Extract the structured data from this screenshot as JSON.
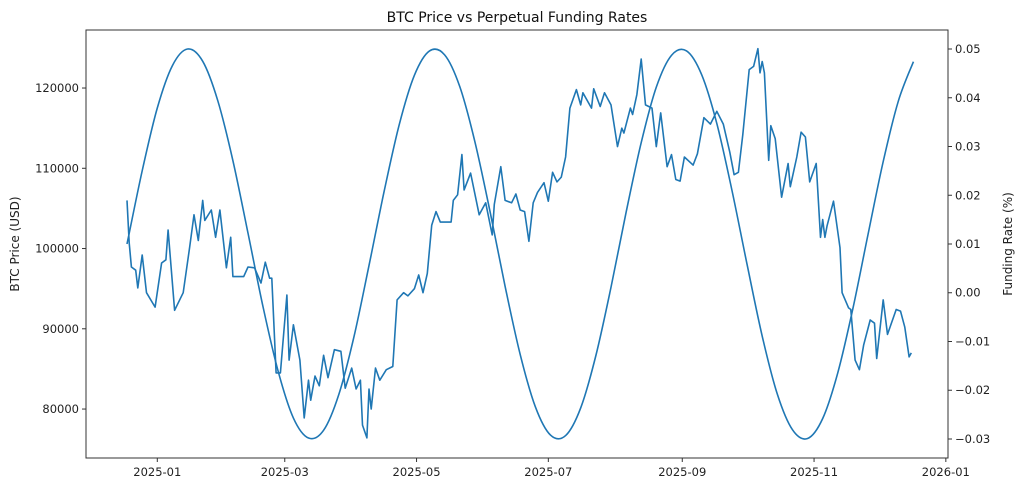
{
  "chart_data": {
    "type": "line",
    "title": "BTC Price vs Perpetual Funding Rates",
    "ylabel": "BTC Price (USD)",
    "y2label": "Funding Rate (%)",
    "xlim": [
      "2024-11-29",
      "2026-01-02"
    ],
    "ylim": [
      73900,
      127230
    ],
    "y2lim": [
      -0.0339,
      0.0539
    ],
    "grid": false,
    "color": "#1f77b4",
    "x_ticks": [
      "2025-01",
      "2025-03",
      "2025-05",
      "2025-07",
      "2025-09",
      "2025-11",
      "2026-01"
    ],
    "y_ticks": [
      "80000",
      "90000",
      "100000",
      "110000",
      "120000"
    ],
    "y2_ticks": [
      "-0.03",
      "-0.02",
      "-0.01",
      "0.00",
      "0.01",
      "0.02",
      "0.03",
      "0.04",
      "0.05"
    ],
    "series": [
      {
        "axis": "left",
        "points": [
          [
            "2024-12-18",
            106000
          ],
          [
            "2024-12-19",
            100700
          ],
          [
            "2024-12-20",
            97700
          ],
          [
            "2024-12-22",
            97300
          ],
          [
            "2024-12-23",
            95100
          ],
          [
            "2024-12-25",
            99200
          ],
          [
            "2024-12-27",
            94500
          ],
          [
            "2024-12-31",
            92700
          ],
          [
            "2025-01-03",
            98200
          ],
          [
            "2025-01-05",
            98600
          ],
          [
            "2025-01-06",
            102300
          ],
          [
            "2025-01-09",
            92300
          ],
          [
            "2025-01-13",
            94500
          ],
          [
            "2025-01-16",
            100200
          ],
          [
            "2025-01-18",
            104200
          ],
          [
            "2025-01-20",
            101000
          ],
          [
            "2025-01-22",
            106000
          ],
          [
            "2025-01-23",
            103500
          ],
          [
            "2025-01-26",
            104800
          ],
          [
            "2025-01-28",
            101400
          ],
          [
            "2025-01-30",
            104800
          ],
          [
            "2025-02-02",
            97600
          ],
          [
            "2025-02-04",
            101400
          ],
          [
            "2025-02-05",
            96500
          ],
          [
            "2025-02-10",
            96500
          ],
          [
            "2025-02-12",
            97700
          ],
          [
            "2025-02-15",
            97600
          ],
          [
            "2025-02-18",
            95700
          ],
          [
            "2025-02-20",
            98300
          ],
          [
            "2025-02-22",
            96300
          ],
          [
            "2025-02-23",
            96300
          ],
          [
            "2025-02-25",
            84500
          ],
          [
            "2025-02-27",
            84500
          ],
          [
            "2025-03-02",
            94200
          ],
          [
            "2025-03-03",
            86100
          ],
          [
            "2025-03-05",
            90500
          ],
          [
            "2025-03-08",
            86100
          ],
          [
            "2025-03-10",
            78900
          ],
          [
            "2025-03-12",
            83600
          ],
          [
            "2025-03-13",
            81100
          ],
          [
            "2025-03-15",
            84100
          ],
          [
            "2025-03-17",
            82900
          ],
          [
            "2025-03-19",
            86700
          ],
          [
            "2025-03-21",
            83900
          ],
          [
            "2025-03-24",
            87400
          ],
          [
            "2025-03-27",
            87200
          ],
          [
            "2025-03-29",
            82600
          ],
          [
            "2025-04-01",
            85100
          ],
          [
            "2025-04-03",
            82500
          ],
          [
            "2025-04-05",
            83600
          ],
          [
            "2025-04-06",
            78000
          ],
          [
            "2025-04-08",
            76400
          ],
          [
            "2025-04-09",
            82500
          ],
          [
            "2025-04-10",
            80000
          ],
          [
            "2025-04-12",
            85100
          ],
          [
            "2025-04-14",
            83600
          ],
          [
            "2025-04-17",
            84900
          ],
          [
            "2025-04-20",
            85300
          ],
          [
            "2025-04-22",
            93600
          ],
          [
            "2025-04-25",
            94500
          ],
          [
            "2025-04-27",
            94100
          ],
          [
            "2025-04-30",
            95000
          ],
          [
            "2025-05-02",
            96700
          ],
          [
            "2025-05-04",
            94500
          ],
          [
            "2025-05-06",
            96900
          ],
          [
            "2025-05-08",
            102900
          ],
          [
            "2025-05-10",
            104600
          ],
          [
            "2025-05-12",
            103300
          ],
          [
            "2025-05-17",
            103300
          ],
          [
            "2025-05-18",
            106000
          ],
          [
            "2025-05-20",
            106700
          ],
          [
            "2025-05-22",
            111700
          ],
          [
            "2025-05-23",
            107300
          ],
          [
            "2025-05-26",
            109400
          ],
          [
            "2025-05-30",
            104200
          ],
          [
            "2025-06-02",
            105700
          ],
          [
            "2025-06-05",
            101700
          ],
          [
            "2025-06-06",
            105500
          ],
          [
            "2025-06-09",
            110200
          ],
          [
            "2025-06-11",
            106000
          ],
          [
            "2025-06-14",
            105700
          ],
          [
            "2025-06-16",
            106800
          ],
          [
            "2025-06-18",
            104800
          ],
          [
            "2025-06-20",
            104600
          ],
          [
            "2025-06-22",
            100900
          ],
          [
            "2025-06-24",
            105700
          ],
          [
            "2025-06-26",
            107000
          ],
          [
            "2025-06-29",
            108200
          ],
          [
            "2025-07-01",
            105900
          ],
          [
            "2025-07-03",
            109500
          ],
          [
            "2025-07-05",
            108300
          ],
          [
            "2025-07-07",
            108900
          ],
          [
            "2025-07-09",
            111400
          ],
          [
            "2025-07-11",
            117500
          ],
          [
            "2025-07-14",
            119800
          ],
          [
            "2025-07-16",
            117900
          ],
          [
            "2025-07-17",
            119400
          ],
          [
            "2025-07-21",
            117500
          ],
          [
            "2025-07-22",
            119900
          ],
          [
            "2025-07-25",
            117700
          ],
          [
            "2025-07-27",
            119400
          ],
          [
            "2025-07-30",
            117900
          ],
          [
            "2025-08-02",
            112700
          ],
          [
            "2025-08-04",
            115000
          ],
          [
            "2025-08-05",
            114400
          ],
          [
            "2025-08-08",
            117500
          ],
          [
            "2025-08-09",
            116700
          ],
          [
            "2025-08-11",
            119200
          ],
          [
            "2025-08-13",
            123600
          ],
          [
            "2025-08-15",
            117900
          ],
          [
            "2025-08-18",
            117500
          ],
          [
            "2025-08-20",
            112700
          ],
          [
            "2025-08-22",
            116900
          ],
          [
            "2025-08-25",
            110200
          ],
          [
            "2025-08-27",
            111700
          ],
          [
            "2025-08-29",
            108600
          ],
          [
            "2025-08-31",
            108400
          ],
          [
            "2025-09-02",
            111400
          ],
          [
            "2025-09-06",
            110400
          ],
          [
            "2025-09-08",
            111800
          ],
          [
            "2025-09-11",
            116300
          ],
          [
            "2025-09-14",
            115500
          ],
          [
            "2025-09-17",
            117100
          ],
          [
            "2025-09-20",
            115500
          ],
          [
            "2025-09-23",
            112000
          ],
          [
            "2025-09-25",
            109200
          ],
          [
            "2025-09-27",
            109500
          ],
          [
            "2025-09-29",
            114200
          ],
          [
            "2025-10-02",
            122300
          ],
          [
            "2025-10-04",
            122700
          ],
          [
            "2025-10-06",
            124900
          ],
          [
            "2025-10-07",
            121900
          ],
          [
            "2025-10-08",
            123300
          ],
          [
            "2025-10-09",
            121900
          ],
          [
            "2025-10-11",
            111000
          ],
          [
            "2025-10-12",
            115300
          ],
          [
            "2025-10-14",
            113700
          ],
          [
            "2025-10-17",
            106400
          ],
          [
            "2025-10-20",
            110600
          ],
          [
            "2025-10-21",
            107700
          ],
          [
            "2025-10-24",
            111400
          ],
          [
            "2025-10-26",
            114500
          ],
          [
            "2025-10-28",
            113900
          ],
          [
            "2025-10-30",
            108300
          ],
          [
            "2025-11-02",
            110600
          ],
          [
            "2025-11-04",
            101400
          ],
          [
            "2025-11-05",
            103600
          ],
          [
            "2025-11-06",
            101400
          ],
          [
            "2025-11-07",
            102800
          ],
          [
            "2025-11-10",
            105900
          ],
          [
            "2025-11-13",
            100100
          ],
          [
            "2025-11-14",
            94500
          ],
          [
            "2025-11-17",
            92600
          ],
          [
            "2025-11-18",
            92400
          ],
          [
            "2025-11-20",
            86100
          ],
          [
            "2025-11-22",
            84900
          ],
          [
            "2025-11-24",
            88000
          ],
          [
            "2025-11-27",
            91100
          ],
          [
            "2025-11-29",
            90700
          ],
          [
            "2025-11-30",
            86300
          ],
          [
            "2025-12-03",
            93600
          ],
          [
            "2025-12-05",
            89300
          ],
          [
            "2025-12-09",
            92400
          ],
          [
            "2025-12-11",
            92200
          ],
          [
            "2025-12-13",
            90200
          ],
          [
            "2025-12-15",
            86500
          ],
          [
            "2025-12-16",
            87000
          ]
        ]
      },
      {
        "axis": "right",
        "smooth": true,
        "points": [
          [
            "2024-12-18",
            0.01
          ],
          [
            "2024-12-25",
            0.025
          ],
          [
            "2025-01-01",
            0.0379
          ],
          [
            "2025-01-08",
            0.0466
          ],
          [
            "2025-01-15",
            0.05
          ],
          [
            "2025-01-22",
            0.0475
          ],
          [
            "2025-01-29",
            0.0394
          ],
          [
            "2025-02-05",
            0.0271
          ],
          [
            "2025-02-12",
            0.0122
          ],
          [
            "2025-02-19",
            -0.003
          ],
          [
            "2025-02-26",
            -0.0162
          ],
          [
            "2025-03-05",
            -0.0257
          ],
          [
            "2025-03-12",
            -0.0298
          ],
          [
            "2025-03-19",
            -0.0282
          ],
          [
            "2025-03-26",
            -0.0209
          ],
          [
            "2025-04-02",
            -0.0091
          ],
          [
            "2025-04-09",
            0.0056
          ],
          [
            "2025-04-16",
            0.0208
          ],
          [
            "2025-04-23",
            0.0345
          ],
          [
            "2025-04-30",
            0.0446
          ],
          [
            "2025-05-07",
            0.0496
          ],
          [
            "2025-05-14",
            0.0488
          ],
          [
            "2025-05-21",
            0.0423
          ],
          [
            "2025-05-28",
            0.031
          ],
          [
            "2025-06-04",
            0.0167
          ],
          [
            "2025-06-11",
            0.0013
          ],
          [
            "2025-06-18",
            -0.0127
          ],
          [
            "2025-06-25",
            -0.0234
          ],
          [
            "2025-07-02",
            -0.0292
          ],
          [
            "2025-07-09",
            -0.0293
          ],
          [
            "2025-07-16",
            -0.0236
          ],
          [
            "2025-07-23",
            -0.0129
          ],
          [
            "2025-07-30",
            0.0011
          ],
          [
            "2025-08-06",
            0.0165
          ],
          [
            "2025-08-13",
            0.0308
          ],
          [
            "2025-08-20",
            0.0422
          ],
          [
            "2025-08-27",
            0.0487
          ],
          [
            "2025-09-03",
            0.0496
          ],
          [
            "2025-09-10",
            0.0447
          ],
          [
            "2025-09-17",
            0.0347
          ],
          [
            "2025-09-24",
            0.021
          ],
          [
            "2025-10-01",
            0.0058
          ],
          [
            "2025-10-08",
            -0.0089
          ],
          [
            "2025-10-15",
            -0.0208
          ],
          [
            "2025-10-22",
            -0.0281
          ],
          [
            "2025-10-29",
            -0.0299
          ],
          [
            "2025-11-05",
            -0.0258
          ],
          [
            "2025-11-12",
            -0.0164
          ],
          [
            "2025-11-19",
            -0.0032
          ],
          [
            "2025-11-26",
            0.012
          ],
          [
            "2025-12-03",
            0.0269
          ],
          [
            "2025-12-10",
            0.0393
          ],
          [
            "2025-12-17",
            0.0474
          ]
        ]
      }
    ]
  }
}
